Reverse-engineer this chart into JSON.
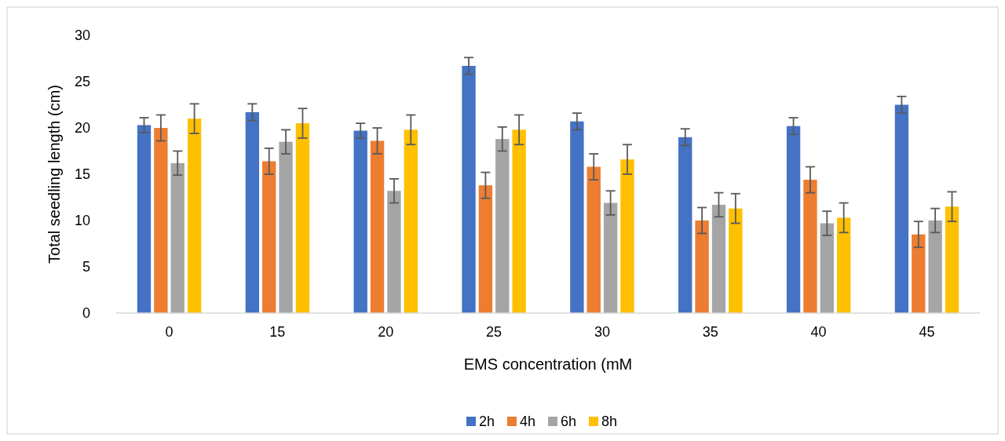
{
  "chart_data": {
    "type": "bar",
    "xlabel": "EMS concentration (mM",
    "ylabel": "Total seedling length (cm)",
    "categories": [
      "0",
      "15",
      "20",
      "25",
      "30",
      "35",
      "40",
      "45"
    ],
    "series": [
      {
        "name": "2h",
        "color": "#4472c4",
        "values": [
          20.3,
          21.7,
          19.7,
          26.7,
          20.7,
          19.0,
          20.2,
          22.5
        ],
        "errors": [
          0.8,
          0.9,
          0.8,
          0.9,
          0.9,
          0.9,
          0.9,
          0.9
        ]
      },
      {
        "name": "4h",
        "color": "#ed7d31",
        "values": [
          20.0,
          16.4,
          18.6,
          13.8,
          15.8,
          10.0,
          14.4,
          8.5
        ],
        "errors": [
          1.4,
          1.4,
          1.4,
          1.4,
          1.4,
          1.4,
          1.4,
          1.4
        ]
      },
      {
        "name": "6h",
        "color": "#a5a5a5",
        "values": [
          16.2,
          18.5,
          13.2,
          18.8,
          11.9,
          11.7,
          9.7,
          10.0
        ],
        "errors": [
          1.3,
          1.3,
          1.3,
          1.3,
          1.3,
          1.3,
          1.3,
          1.3
        ]
      },
      {
        "name": "8h",
        "color": "#ffc000",
        "values": [
          21.0,
          20.5,
          19.8,
          19.8,
          16.6,
          11.3,
          10.3,
          11.5
        ],
        "errors": [
          1.6,
          1.6,
          1.6,
          1.6,
          1.6,
          1.6,
          1.6,
          1.6
        ]
      }
    ],
    "ylim": [
      0,
      30
    ],
    "yticks": [
      0,
      5,
      10,
      15,
      20,
      25,
      30
    ],
    "grid": false,
    "legend": "bottom"
  }
}
